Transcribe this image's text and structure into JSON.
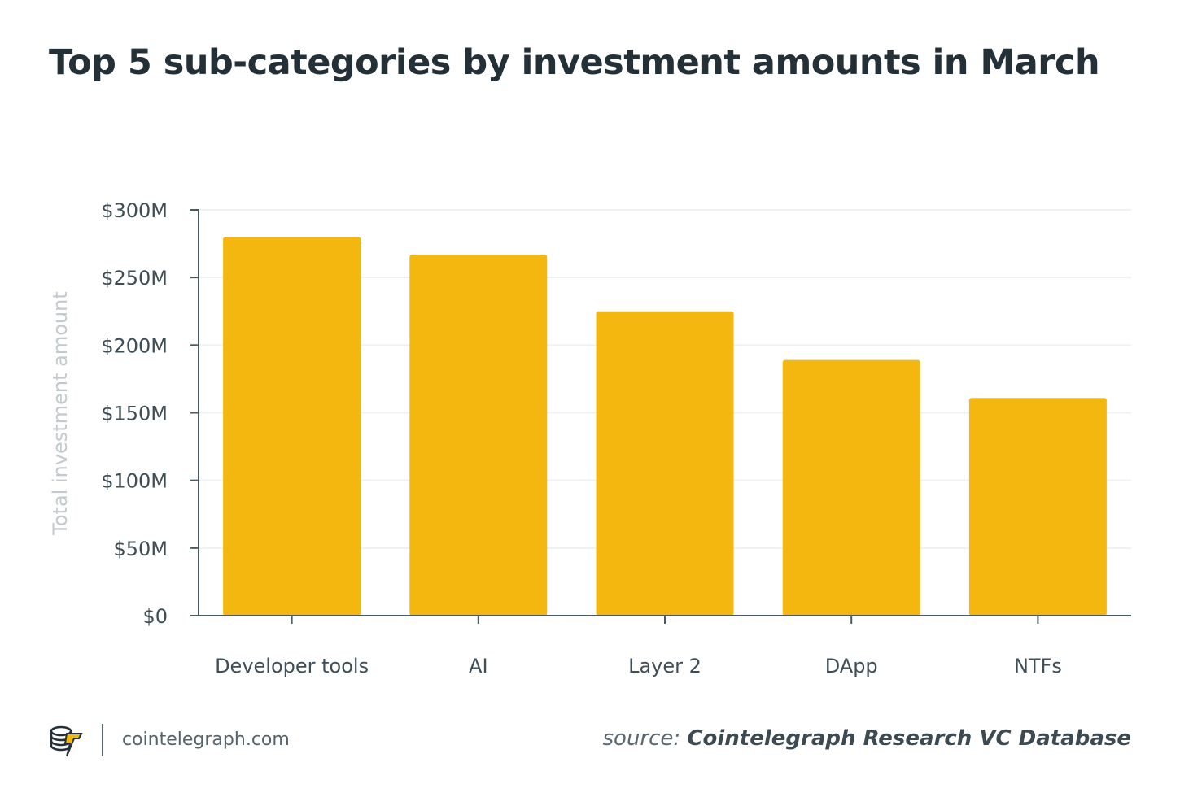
{
  "header": {
    "title": "Top 5 sub-categories by investment amounts in March"
  },
  "chart_data": {
    "type": "bar",
    "title": "Top 5 sub-categories by investment amounts in March",
    "categories": [
      "Developer tools",
      "AI",
      "Layer 2",
      "DApp",
      "NTFs"
    ],
    "values": [
      280,
      267,
      225,
      189,
      161
    ],
    "value_unit": "$M",
    "ylabel": "Total investment amount",
    "xlabel": "",
    "ylim": [
      0,
      300
    ],
    "yticks": [
      0,
      50,
      100,
      150,
      200,
      250,
      300
    ],
    "ytick_labels": [
      "$0",
      "$50M",
      "$100M",
      "$150M",
      "$200M",
      "$250M",
      "$300M"
    ],
    "grid": true,
    "bar_color": "#F4B70F"
  },
  "footer": {
    "site": "cointelegraph.com",
    "source_prefix": "source:",
    "source_name": "Cointelegraph Research VC Database"
  },
  "colors": {
    "title": "#243038",
    "axis": "#4a5a63",
    "tick_label": "#3e4d56",
    "ylabel": "#c2cace",
    "grid": "#eef1f3"
  }
}
